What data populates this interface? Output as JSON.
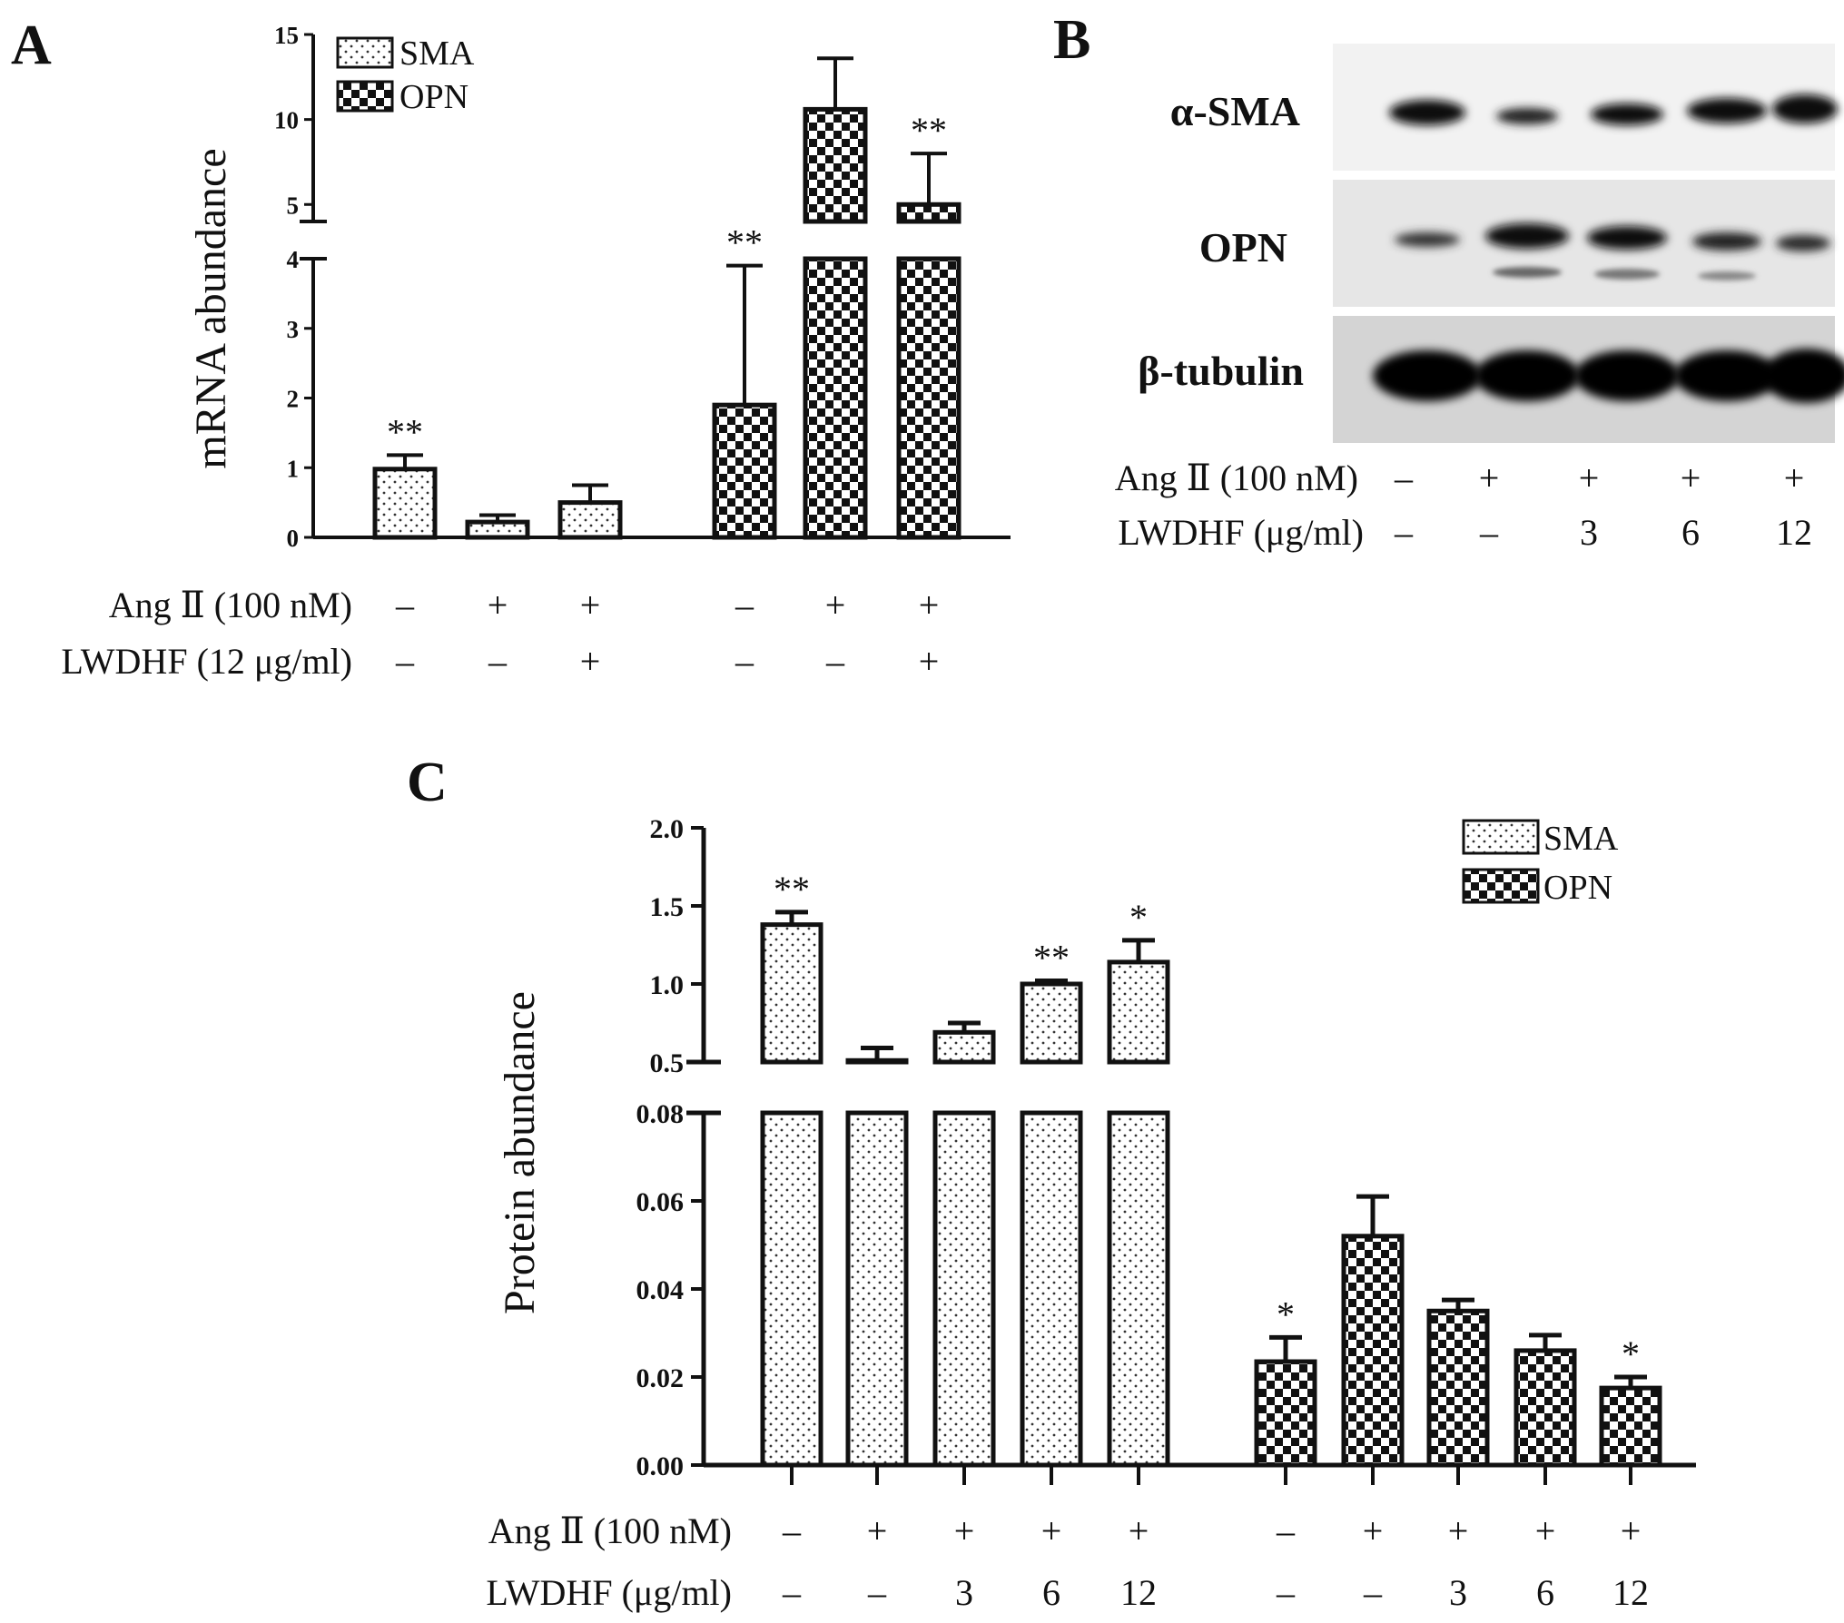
{
  "panels": {
    "a": {
      "letter": "A",
      "ylabel": "mRNA  abundance",
      "yticks_lower": [
        "0",
        "1",
        "2",
        "3",
        "4"
      ],
      "yticks_upper": [
        "5",
        "10",
        "15"
      ],
      "legend": [
        "SMA",
        "OPN"
      ],
      "treatment_labels": [
        "Ang Ⅱ (100 nM)",
        "LWDHF (12 μg/ml)"
      ],
      "ang_row": [
        "–",
        "+",
        "+",
        "–",
        "+",
        "+"
      ],
      "lwdhf_row": [
        "–",
        "–",
        "+",
        "–",
        "–",
        "+"
      ]
    },
    "b": {
      "letter": "B",
      "blot_labels": [
        "α-SMA",
        "OPN",
        "β-tubulin"
      ],
      "treatment_labels": [
        "Ang Ⅱ (100 nM)",
        "LWDHF (μg/ml)"
      ],
      "ang_row": [
        "–",
        "+",
        "+",
        "+",
        "+"
      ],
      "lwdhf_row": [
        "–",
        "–",
        "3",
        "6",
        "12"
      ]
    },
    "c": {
      "letter": "C",
      "ylabel": "Protein  abundance",
      "yticks_upper": [
        "0.5",
        "1.0",
        "1.5",
        "2.0"
      ],
      "yticks_lower": [
        "0.00",
        "0.02",
        "0.04",
        "0.06",
        "0.08"
      ],
      "legend": [
        "SMA",
        "OPN"
      ],
      "treatment_labels": [
        "Ang Ⅱ (100 nM)",
        "LWDHF (μg/ml)"
      ],
      "ang_row": [
        "–",
        "+",
        "+",
        "+",
        "+",
        "–",
        "+",
        "+",
        "+",
        "+"
      ],
      "lwdhf_row": [
        "–",
        "–",
        "3",
        "6",
        "12",
        "–",
        "–",
        "3",
        "6",
        "12"
      ]
    }
  },
  "chart_data": [
    {
      "type": "bar",
      "title": "",
      "ylabel": "mRNA  abundance",
      "axis_break": [
        4,
        4
      ],
      "ylim": [
        0,
        15
      ],
      "series": [
        {
          "name": "SMA",
          "values": [
            0.98,
            0.22,
            0.5
          ],
          "errors": [
            0.2,
            0.1,
            0.25
          ],
          "annotations": [
            "**",
            "",
            ""
          ]
        },
        {
          "name": "OPN",
          "values": [
            1.9,
            10.6,
            5.0
          ],
          "errors": [
            2.0,
            3.0,
            3.0
          ],
          "annotations": [
            "**",
            "",
            "**"
          ]
        }
      ],
      "legend": "top-left"
    },
    {
      "type": "bar",
      "title": "",
      "ylabel": "Protein  abundance",
      "axis_break": [
        0.08,
        0.5
      ],
      "ylim": [
        0,
        2.0
      ],
      "series": [
        {
          "name": "SMA",
          "values": [
            1.38,
            0.51,
            0.69,
            1.0,
            1.14
          ],
          "errors": [
            0.08,
            0.08,
            0.06,
            0.02,
            0.14
          ],
          "annotations": [
            "**",
            "",
            "",
            "**",
            "*"
          ]
        },
        {
          "name": "OPN",
          "values": [
            0.0235,
            0.052,
            0.035,
            0.026,
            0.0175
          ],
          "errors": [
            0.0055,
            0.009,
            0.0025,
            0.0035,
            0.0025
          ],
          "annotations": [
            "*",
            "",
            "",
            "",
            "*"
          ]
        }
      ],
      "legend": "top-right"
    }
  ],
  "colors": {
    "ink": "#111111",
    "background": "#ffffff"
  }
}
